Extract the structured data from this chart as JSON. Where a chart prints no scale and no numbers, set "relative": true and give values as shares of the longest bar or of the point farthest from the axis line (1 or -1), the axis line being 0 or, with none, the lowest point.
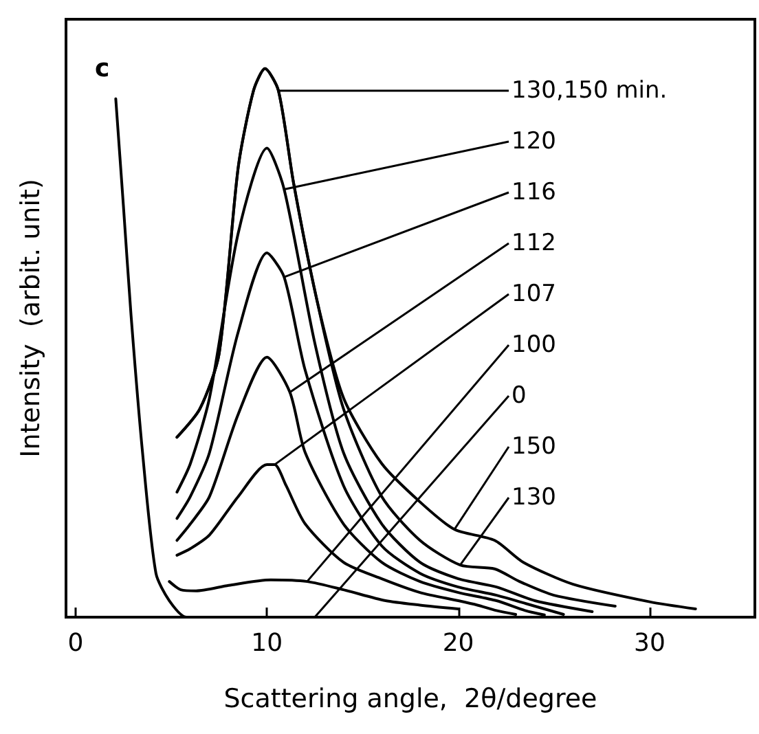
{
  "chart_data": {
    "type": "line",
    "title": "c",
    "xlabel": "Scattering angle,  2θ/degree",
    "ylabel": "Intensity  (arbit. unit)",
    "relative": true,
    "xlim": [
      -0.5,
      35.5
    ],
    "xticks": [
      0,
      10,
      20,
      30
    ],
    "tick_labels": "x",
    "marker": "none",
    "line_style": "solid",
    "series": [
      {
        "color": "#000000",
        "x": [
          2.1,
          2.5,
          2.9,
          3.5,
          4.2,
          4.9,
          5.8,
          8,
          12,
          16,
          20
        ],
        "values": [
          0.945,
          0.75,
          0.55,
          0.3,
          0.08,
          0.03,
          0,
          0,
          0,
          0,
          0
        ]
      },
      {
        "color": "#000000",
        "x": [
          4.9,
          5.5,
          6.3,
          8,
          10.2,
          12.1,
          14,
          16.2,
          18,
          20
        ],
        "values": [
          0.065,
          0.05,
          0.048,
          0.058,
          0.068,
          0.065,
          0.05,
          0.03,
          0.022,
          0.015
        ]
      },
      {
        "color": "#000000",
        "x": [
          5.3,
          6,
          7,
          8.5,
          10,
          10.4,
          11,
          12,
          14,
          16,
          18,
          20,
          21,
          22,
          23
        ],
        "values": [
          0.113,
          0.125,
          0.15,
          0.22,
          0.278,
          0.278,
          0.24,
          0.17,
          0.1,
          0.07,
          0.045,
          0.03,
          0.022,
          0.012,
          0.005
        ]
      },
      {
        "color": "#000000",
        "x": [
          5.3,
          6,
          7,
          8.5,
          10,
          11.2,
          12,
          14,
          16,
          18,
          20,
          22,
          23.5,
          24.5
        ],
        "values": [
          0.14,
          0.17,
          0.22,
          0.37,
          0.474,
          0.41,
          0.3,
          0.17,
          0.1,
          0.065,
          0.045,
          0.03,
          0.012,
          0.004
        ]
      },
      {
        "color": "#000000",
        "x": [
          5.3,
          6,
          7,
          8.5,
          10,
          10.9,
          12,
          14,
          16,
          18,
          20,
          22,
          24,
          25.5
        ],
        "values": [
          0.18,
          0.22,
          0.3,
          0.52,
          0.664,
          0.62,
          0.45,
          0.24,
          0.13,
          0.08,
          0.055,
          0.04,
          0.02,
          0.005
        ]
      },
      {
        "color": "#000000",
        "x": [
          5.3,
          6,
          7,
          8.5,
          10,
          10.9,
          12.5,
          14,
          16,
          18,
          20,
          22,
          24,
          27
        ],
        "values": [
          0.228,
          0.28,
          0.4,
          0.7,
          0.855,
          0.78,
          0.5,
          0.3,
          0.17,
          0.1,
          0.07,
          0.055,
          0.03,
          0.01
        ]
      },
      {
        "color": "#000000",
        "x": [
          5.3,
          6.5,
          7.5,
          8.5,
          9.3,
          9.9,
          10.6,
          11.4,
          12.6,
          14,
          16,
          18,
          20.1,
          21.9,
          23.2,
          25,
          28.2
        ],
        "values": [
          0.328,
          0.38,
          0.48,
          0.82,
          0.96,
          1.0,
          0.96,
          0.79,
          0.58,
          0.38,
          0.22,
          0.14,
          0.095,
          0.088,
          0.065,
          0.04,
          0.02
        ]
      },
      {
        "color": "#000000",
        "x": [
          5.3,
          6.5,
          7.5,
          8.5,
          9.3,
          9.9,
          10.6,
          11.4,
          12.6,
          14,
          16,
          18,
          19.8,
          21.9,
          23.4,
          26,
          30,
          32.4
        ],
        "values": [
          0.328,
          0.38,
          0.48,
          0.82,
          0.96,
          1.0,
          0.96,
          0.79,
          0.58,
          0.4,
          0.28,
          0.21,
          0.16,
          0.14,
          0.1,
          0.06,
          0.028,
          0.015
        ]
      }
    ],
    "annotations": [
      {
        "text": "130,150 min.",
        "x": 10.6,
        "y": 0.96
      },
      {
        "text": "120",
        "x": 10.9,
        "y": 0.78
      },
      {
        "text": "116",
        "x": 10.9,
        "y": 0.62
      },
      {
        "text": "112",
        "x": 11.2,
        "y": 0.41
      },
      {
        "text": "107",
        "x": 10.4,
        "y": 0.278
      },
      {
        "text": "100",
        "x": 12.1,
        "y": 0.065
      },
      {
        "text": "0",
        "x": 12.5,
        "y": 0
      },
      {
        "text": "150",
        "x": 19.8,
        "y": 0.16
      },
      {
        "text": "130",
        "x": 20.1,
        "y": 0.095
      }
    ]
  }
}
